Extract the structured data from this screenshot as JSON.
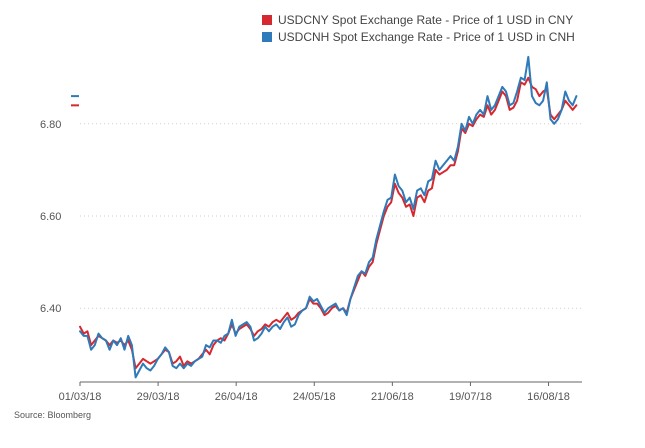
{
  "chart_data": {
    "type": "line",
    "title": "",
    "xlabel": "",
    "ylabel": "",
    "ylim": [
      6.24,
      6.96
    ],
    "yticks": [
      6.4,
      6.6,
      6.8
    ],
    "ytick_labels": [
      "6.40",
      "6.60",
      "6.80"
    ],
    "x_range_days": [
      0,
      178
    ],
    "xticks": [
      {
        "label": "01/03/18",
        "day": 0
      },
      {
        "label": "29/03/18",
        "day": 28
      },
      {
        "label": "26/04/18",
        "day": 56
      },
      {
        "label": "24/05/18",
        "day": 84
      },
      {
        "label": "21/06/18",
        "day": 112
      },
      {
        "label": "19/07/18",
        "day": 140
      },
      {
        "label": "16/08/18",
        "day": 168
      }
    ],
    "grid": "horizontal-dotted",
    "legend_position": "top-right",
    "series": [
      {
        "name": "USDCNY Spot Exchange Rate - Price of 1 USD in CNY",
        "color": "#d6282f",
        "values": [
          [
            0,
            6.36
          ],
          [
            1,
            6.345
          ],
          [
            2,
            6.35
          ],
          [
            3,
            6.32
          ],
          [
            4,
            6.33
          ],
          [
            5,
            6.34
          ],
          [
            6,
            6.335
          ],
          [
            7,
            6.33
          ],
          [
            8,
            6.32
          ],
          [
            9,
            6.33
          ],
          [
            10,
            6.325
          ],
          [
            11,
            6.33
          ],
          [
            12,
            6.32
          ],
          [
            13,
            6.33
          ],
          [
            14,
            6.31
          ],
          [
            15,
            6.27
          ],
          [
            16,
            6.28
          ],
          [
            17,
            6.29
          ],
          [
            18,
            6.285
          ],
          [
            19,
            6.28
          ],
          [
            20,
            6.285
          ],
          [
            21,
            6.29
          ],
          [
            22,
            6.3
          ],
          [
            23,
            6.31
          ],
          [
            24,
            6.305
          ],
          [
            25,
            6.28
          ],
          [
            26,
            6.285
          ],
          [
            27,
            6.295
          ],
          [
            28,
            6.275
          ],
          [
            29,
            6.285
          ],
          [
            30,
            6.28
          ],
          [
            31,
            6.285
          ],
          [
            32,
            6.29
          ],
          [
            33,
            6.3
          ],
          [
            34,
            6.31
          ],
          [
            35,
            6.3
          ],
          [
            36,
            6.32
          ],
          [
            37,
            6.33
          ],
          [
            38,
            6.335
          ],
          [
            39,
            6.33
          ],
          [
            40,
            6.345
          ],
          [
            41,
            6.365
          ],
          [
            42,
            6.345
          ],
          [
            43,
            6.355
          ],
          [
            44,
            6.36
          ],
          [
            45,
            6.365
          ],
          [
            46,
            6.355
          ],
          [
            47,
            6.34
          ],
          [
            48,
            6.35
          ],
          [
            49,
            6.355
          ],
          [
            50,
            6.365
          ],
          [
            51,
            6.36
          ],
          [
            52,
            6.37
          ],
          [
            53,
            6.375
          ],
          [
            54,
            6.37
          ],
          [
            55,
            6.38
          ],
          [
            56,
            6.39
          ],
          [
            57,
            6.375
          ],
          [
            58,
            6.38
          ],
          [
            59,
            6.39
          ],
          [
            60,
            6.395
          ],
          [
            61,
            6.4
          ],
          [
            62,
            6.42
          ],
          [
            63,
            6.41
          ],
          [
            64,
            6.41
          ],
          [
            65,
            6.4
          ],
          [
            66,
            6.385
          ],
          [
            67,
            6.39
          ],
          [
            68,
            6.4
          ],
          [
            69,
            6.405
          ],
          [
            70,
            6.395
          ],
          [
            71,
            6.4
          ],
          [
            72,
            6.39
          ],
          [
            73,
            6.42
          ],
          [
            74,
            6.44
          ],
          [
            75,
            6.46
          ],
          [
            76,
            6.48
          ],
          [
            77,
            6.47
          ],
          [
            78,
            6.49
          ],
          [
            79,
            6.5
          ],
          [
            80,
            6.54
          ],
          [
            81,
            6.57
          ],
          [
            82,
            6.6
          ],
          [
            83,
            6.62
          ],
          [
            84,
            6.63
          ],
          [
            85,
            6.67
          ],
          [
            86,
            6.65
          ],
          [
            87,
            6.64
          ],
          [
            88,
            6.62
          ],
          [
            89,
            6.625
          ],
          [
            90,
            6.6
          ],
          [
            91,
            6.64
          ],
          [
            92,
            6.645
          ],
          [
            93,
            6.63
          ],
          [
            94,
            6.655
          ],
          [
            95,
            6.66
          ],
          [
            96,
            6.7
          ],
          [
            97,
            6.69
          ],
          [
            98,
            6.695
          ],
          [
            99,
            6.7
          ],
          [
            100,
            6.71
          ],
          [
            101,
            6.71
          ],
          [
            102,
            6.74
          ],
          [
            103,
            6.79
          ],
          [
            104,
            6.78
          ],
          [
            105,
            6.8
          ],
          [
            106,
            6.795
          ],
          [
            107,
            6.81
          ],
          [
            108,
            6.82
          ],
          [
            109,
            6.815
          ],
          [
            110,
            6.84
          ],
          [
            111,
            6.82
          ],
          [
            112,
            6.83
          ],
          [
            113,
            6.85
          ],
          [
            114,
            6.87
          ],
          [
            115,
            6.86
          ],
          [
            116,
            6.83
          ],
          [
            117,
            6.835
          ],
          [
            118,
            6.85
          ],
          [
            119,
            6.89
          ],
          [
            120,
            6.885
          ],
          [
            121,
            6.9
          ],
          [
            122,
            6.88
          ],
          [
            123,
            6.875
          ],
          [
            124,
            6.86
          ],
          [
            125,
            6.87
          ],
          [
            126,
            6.875
          ],
          [
            127,
            6.82
          ],
          [
            128,
            6.81
          ],
          [
            129,
            6.82
          ],
          [
            130,
            6.83
          ],
          [
            131,
            6.85
          ],
          [
            132,
            6.84
          ],
          [
            133,
            6.83
          ],
          [
            134,
            6.84
          ]
        ]
      },
      {
        "name": "USDCNH Spot Exchange Rate - Price of 1 USD in CNH",
        "color": "#2f7ab8",
        "values": [
          [
            0,
            6.35
          ],
          [
            1,
            6.34
          ],
          [
            2,
            6.34
          ],
          [
            3,
            6.31
          ],
          [
            4,
            6.32
          ],
          [
            5,
            6.345
          ],
          [
            6,
            6.335
          ],
          [
            7,
            6.33
          ],
          [
            8,
            6.31
          ],
          [
            9,
            6.33
          ],
          [
            10,
            6.32
          ],
          [
            11,
            6.335
          ],
          [
            12,
            6.31
          ],
          [
            13,
            6.34
          ],
          [
            14,
            6.32
          ],
          [
            15,
            6.25
          ],
          [
            16,
            6.265
          ],
          [
            17,
            6.28
          ],
          [
            18,
            6.27
          ],
          [
            19,
            6.265
          ],
          [
            20,
            6.275
          ],
          [
            21,
            6.29
          ],
          [
            22,
            6.3
          ],
          [
            23,
            6.315
          ],
          [
            24,
            6.305
          ],
          [
            25,
            6.275
          ],
          [
            26,
            6.27
          ],
          [
            27,
            6.28
          ],
          [
            28,
            6.27
          ],
          [
            29,
            6.28
          ],
          [
            30,
            6.275
          ],
          [
            31,
            6.285
          ],
          [
            32,
            6.29
          ],
          [
            33,
            6.295
          ],
          [
            34,
            6.32
          ],
          [
            35,
            6.315
          ],
          [
            36,
            6.33
          ],
          [
            37,
            6.33
          ],
          [
            38,
            6.325
          ],
          [
            39,
            6.34
          ],
          [
            40,
            6.345
          ],
          [
            41,
            6.375
          ],
          [
            42,
            6.34
          ],
          [
            43,
            6.36
          ],
          [
            44,
            6.365
          ],
          [
            45,
            6.37
          ],
          [
            46,
            6.36
          ],
          [
            47,
            6.33
          ],
          [
            48,
            6.335
          ],
          [
            49,
            6.345
          ],
          [
            50,
            6.36
          ],
          [
            51,
            6.35
          ],
          [
            52,
            6.36
          ],
          [
            53,
            6.365
          ],
          [
            54,
            6.355
          ],
          [
            55,
            6.37
          ],
          [
            56,
            6.38
          ],
          [
            57,
            6.36
          ],
          [
            58,
            6.365
          ],
          [
            59,
            6.385
          ],
          [
            60,
            6.395
          ],
          [
            61,
            6.4
          ],
          [
            62,
            6.425
          ],
          [
            63,
            6.415
          ],
          [
            64,
            6.42
          ],
          [
            65,
            6.405
          ],
          [
            66,
            6.39
          ],
          [
            67,
            6.4
          ],
          [
            68,
            6.405
          ],
          [
            69,
            6.41
          ],
          [
            70,
            6.395
          ],
          [
            71,
            6.4
          ],
          [
            72,
            6.385
          ],
          [
            73,
            6.42
          ],
          [
            74,
            6.445
          ],
          [
            75,
            6.47
          ],
          [
            76,
            6.48
          ],
          [
            77,
            6.475
          ],
          [
            78,
            6.5
          ],
          [
            79,
            6.51
          ],
          [
            80,
            6.55
          ],
          [
            81,
            6.58
          ],
          [
            82,
            6.61
          ],
          [
            83,
            6.635
          ],
          [
            84,
            6.64
          ],
          [
            85,
            6.69
          ],
          [
            86,
            6.665
          ],
          [
            87,
            6.655
          ],
          [
            88,
            6.63
          ],
          [
            89,
            6.64
          ],
          [
            90,
            6.615
          ],
          [
            91,
            6.655
          ],
          [
            92,
            6.66
          ],
          [
            93,
            6.645
          ],
          [
            94,
            6.675
          ],
          [
            95,
            6.68
          ],
          [
            96,
            6.72
          ],
          [
            97,
            6.7
          ],
          [
            98,
            6.71
          ],
          [
            99,
            6.72
          ],
          [
            100,
            6.73
          ],
          [
            101,
            6.72
          ],
          [
            102,
            6.75
          ],
          [
            103,
            6.8
          ],
          [
            104,
            6.785
          ],
          [
            105,
            6.815
          ],
          [
            106,
            6.8
          ],
          [
            107,
            6.82
          ],
          [
            108,
            6.83
          ],
          [
            109,
            6.82
          ],
          [
            110,
            6.86
          ],
          [
            111,
            6.83
          ],
          [
            112,
            6.84
          ],
          [
            113,
            6.86
          ],
          [
            114,
            6.88
          ],
          [
            115,
            6.87
          ],
          [
            116,
            6.84
          ],
          [
            117,
            6.845
          ],
          [
            118,
            6.87
          ],
          [
            119,
            6.9
          ],
          [
            120,
            6.895
          ],
          [
            121,
            6.945
          ],
          [
            122,
            6.86
          ],
          [
            123,
            6.845
          ],
          [
            124,
            6.84
          ],
          [
            125,
            6.85
          ],
          [
            126,
            6.89
          ],
          [
            127,
            6.81
          ],
          [
            128,
            6.8
          ],
          [
            129,
            6.81
          ],
          [
            130,
            6.83
          ],
          [
            131,
            6.87
          ],
          [
            132,
            6.85
          ],
          [
            133,
            6.84
          ],
          [
            134,
            6.86
          ]
        ]
      }
    ],
    "last_value_markers": [
      {
        "series": "USDCNH",
        "value": 6.86,
        "color": "#2f7ab8"
      },
      {
        "series": "USDCNY",
        "value": 6.84,
        "color": "#d6282f"
      }
    ]
  },
  "source_text": "Source: Bloomberg"
}
